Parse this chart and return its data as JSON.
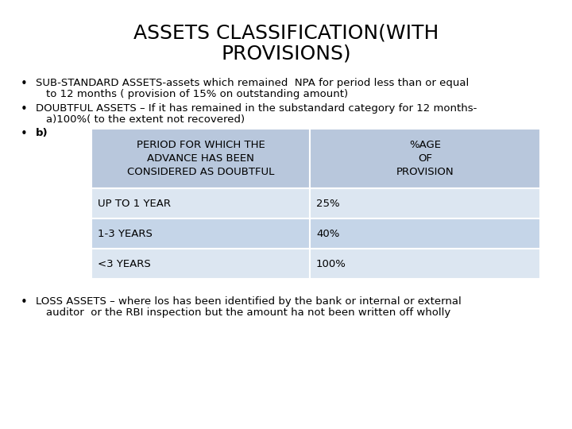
{
  "title_line1": "ASSETS CLASSIFICATION(WITH",
  "title_line2": "PROVISIONS)",
  "title_fontsize": 18,
  "background_color": "#ffffff",
  "bullet1_line1": "SUB-STANDARD ASSETS-assets which remained  NPA for period less than or equal",
  "bullet1_line2": "to 12 months ( provision of 15% on outstanding amount)",
  "bullet2_line1": "DOUBTFUL ASSETS – If it has remained in the substandard category for 12 months-",
  "bullet2_line2": "a)100%( to the extent not recovered)",
  "bullet3_prefix": "b)",
  "bullet4_line1": "LOSS ASSETS – where los has been identified by the bank or internal or external",
  "bullet4_line2": "auditor  or the RBI inspection but the amount ha not been written off wholly",
  "table_header_bg": "#B8C7DC",
  "table_row1_bg": "#DCE6F1",
  "table_row2_bg": "#C5D5E8",
  "table_row3_bg": "#DCE6F1",
  "table_header_text_color": "#000000",
  "table_col1_header": "PERIOD FOR WHICH THE\nADVANCE HAS BEEN\nCONSIDERED AS DOUBTFUL",
  "table_col2_header": "%AGE\nOF\nPROVISION",
  "table_rows": [
    [
      "UP TO 1 YEAR",
      "25%"
    ],
    [
      "1-3 YEARS",
      "40%"
    ],
    [
      "<3 YEARS",
      "100%"
    ]
  ],
  "text_fontsize": 9.5,
  "table_fontsize": 9.5
}
